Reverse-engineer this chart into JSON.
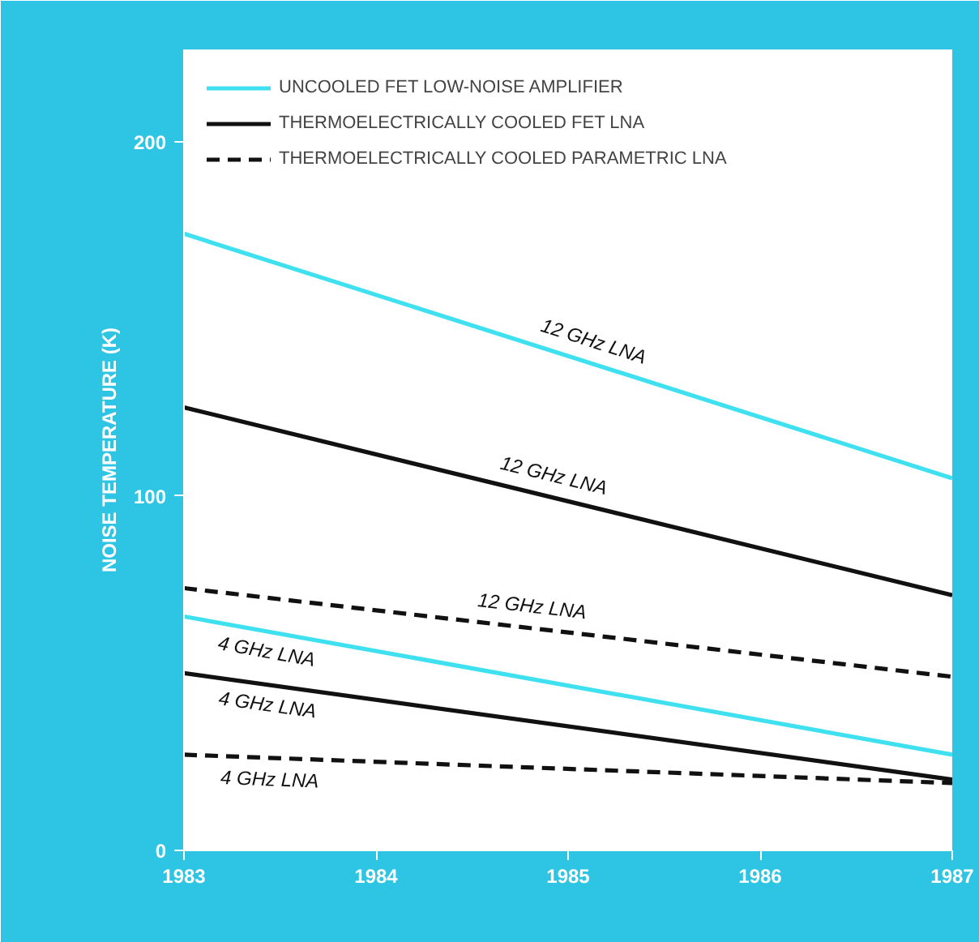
{
  "chart_data": {
    "type": "line",
    "ylabel": "NOISE TEMPERATURE (K)",
    "x": [
      1983,
      1987
    ],
    "series": [
      {
        "name": "UNCOOLED FET LOW-NOISE AMPLIFIER",
        "color": "#3fe0f0",
        "values": [
          174,
          105
        ],
        "line_style": "solid"
      },
      {
        "name": "THERMOELECTRICALLY COOLED FET LNA",
        "color": "#111111",
        "values": [
          125,
          72
        ],
        "line_style": "solid"
      },
      {
        "name": "THERMOELECTRICALLY COOLED PARAMETRIC LNA",
        "color": "#111111",
        "values": [
          74,
          49
        ],
        "line_style": "dashed"
      },
      {
        "color": "#3fe0f0",
        "values": [
          66,
          27
        ],
        "line_style": "solid"
      },
      {
        "color": "#111111",
        "values": [
          50,
          20
        ],
        "line_style": "solid"
      },
      {
        "color": "#111111",
        "values": [
          27,
          19
        ],
        "line_style": "dashed"
      }
    ],
    "annotations": [
      {
        "text": "12 GHz LNA",
        "x": 1985.1,
        "y": 138
      },
      {
        "text": "12 GHz LNA",
        "x": 1984.9,
        "y": 100
      },
      {
        "text": "12 GHz LNA",
        "x": 1984.8,
        "y": 63
      },
      {
        "text": "4 GHz LNA",
        "x": 1983.45,
        "y": 62
      },
      {
        "text": "4 GHz LNA",
        "x": 1983.45,
        "y": 47
      },
      {
        "text": "4 GHz LNA",
        "x": 1983.45,
        "y": 26
      }
    ],
    "xlim": [
      1983,
      1987
    ],
    "ylim": [
      0,
      226
    ],
    "xticks": [
      1983,
      1984,
      1985,
      1986,
      1987
    ],
    "yticks": [
      0,
      100,
      200
    ],
    "grid": false,
    "legend": "top left",
    "marker": "none"
  }
}
